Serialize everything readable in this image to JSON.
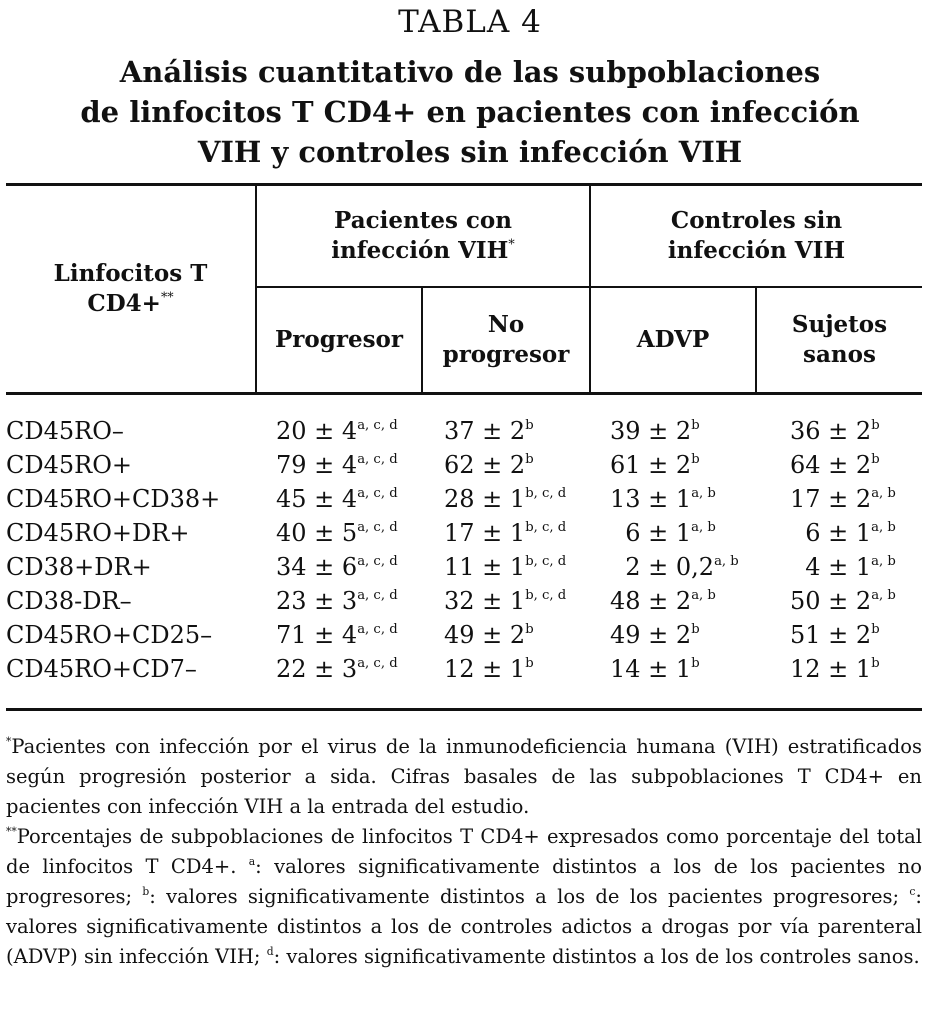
{
  "table_label": "TABLA 4",
  "title_lines": [
    "Análisis cuantitativo de las subpoblaciones",
    "de linfocitos T CD4+ en pacientes con infección",
    "VIH y controles sin infección VIH"
  ],
  "header": {
    "row_header": {
      "line1": "Linfocitos T",
      "line2": "CD4+",
      "mark": "**"
    },
    "group1": {
      "line1": "Pacientes con",
      "line2": "infección VIH",
      "mark": "*"
    },
    "group2": {
      "line1": "Controles sin",
      "line2": "infección VIH"
    },
    "columns": [
      {
        "line1": "Progresor",
        "line2": ""
      },
      {
        "line1": "No",
        "line2": "progresor"
      },
      {
        "line1": "ADVP",
        "line2": ""
      },
      {
        "line1": "Sujetos",
        "line2": "sanos"
      }
    ]
  },
  "rows": [
    {
      "label": "CD45RO–",
      "cells": [
        {
          "v": "20 ± 4",
          "s": "a, c, d"
        },
        {
          "v": "37 ± 2",
          "s": "b"
        },
        {
          "v": "39 ± 2",
          "s": "b"
        },
        {
          "v": "36 ± 2",
          "s": "b"
        }
      ]
    },
    {
      "label": "CD45RO+",
      "cells": [
        {
          "v": "79 ± 4",
          "s": "a, c, d"
        },
        {
          "v": "62 ± 2",
          "s": "b"
        },
        {
          "v": "61 ± 2",
          "s": "b"
        },
        {
          "v": "64 ± 2",
          "s": "b"
        }
      ]
    },
    {
      "label": "CD45RO+CD38+",
      "cells": [
        {
          "v": "45 ± 4",
          "s": "a, c, d"
        },
        {
          "v": "28 ± 1",
          "s": "b, c, d"
        },
        {
          "v": "13 ± 1",
          "s": "a, b"
        },
        {
          "v": "17 ± 2",
          "s": "a, b"
        }
      ]
    },
    {
      "label": "CD45RO+DR+",
      "cells": [
        {
          "v": "40 ± 5",
          "s": "a, c, d"
        },
        {
          "v": "17 ± 1",
          "s": "b, c, d"
        },
        {
          "v": "  6 ± 1",
          "s": "a, b"
        },
        {
          "v": "  6 ± 1",
          "s": "a, b"
        }
      ]
    },
    {
      "label": "CD38+DR+",
      "cells": [
        {
          "v": "34 ± 6",
          "s": "a, c, d"
        },
        {
          "v": "11 ± 1",
          "s": "b, c, d"
        },
        {
          "v": "  2 ± 0,2",
          "s": "a, b"
        },
        {
          "v": "  4 ± 1",
          "s": "a, b"
        }
      ]
    },
    {
      "label": "CD38-DR–",
      "cells": [
        {
          "v": "23 ± 3",
          "s": "a, c, d"
        },
        {
          "v": "32 ± 1",
          "s": "b, c, d"
        },
        {
          "v": "48 ± 2",
          "s": "a, b"
        },
        {
          "v": "50 ± 2",
          "s": "a, b"
        }
      ]
    },
    {
      "label": "CD45RO+CD25–",
      "cells": [
        {
          "v": "71 ± 4",
          "s": "a, c, d"
        },
        {
          "v": "49 ± 2",
          "s": "b"
        },
        {
          "v": "49 ± 2",
          "s": "b"
        },
        {
          "v": "51 ± 2",
          "s": "b"
        }
      ]
    },
    {
      "label": "CD45RO+CD7–",
      "cells": [
        {
          "v": "22 ± 3",
          "s": "a, c, d"
        },
        {
          "v": "12 ± 1",
          "s": "b"
        },
        {
          "v": "14 ± 1",
          "s": "b"
        },
        {
          "v": "12 ± 1",
          "s": "b"
        }
      ]
    }
  ],
  "footnotes": {
    "p1_mark": "*",
    "p1_text": "Pacientes con infección por el virus de la inmunodeficiencia humana (VIH) estratificados según progresión posterior a sida. Cifras basales de las subpoblaciones T CD4+ en pacientes con infección VIH a la entrada del estudio.",
    "p2_mark": "**",
    "p2_text": "Porcentajes de subpoblaciones de linfocitos T CD4+ expresados como porcentaje del total de linfocitos T CD4+. ",
    "sup_a": "a",
    "text_a": ": valores significativamente distintos a los de los pacientes no progresores; ",
    "sup_b": "b",
    "text_b": ": valores significativamente distintos a los de los pacientes progresores; ",
    "sup_c": "c",
    "text_c": ": valores significativamente distintos a los de controles adictos a drogas por vía parenteral (ADVP) sin infección VIH; ",
    "sup_d": "d",
    "text_d": ": valores significativamente distintos a los de los controles sanos."
  }
}
